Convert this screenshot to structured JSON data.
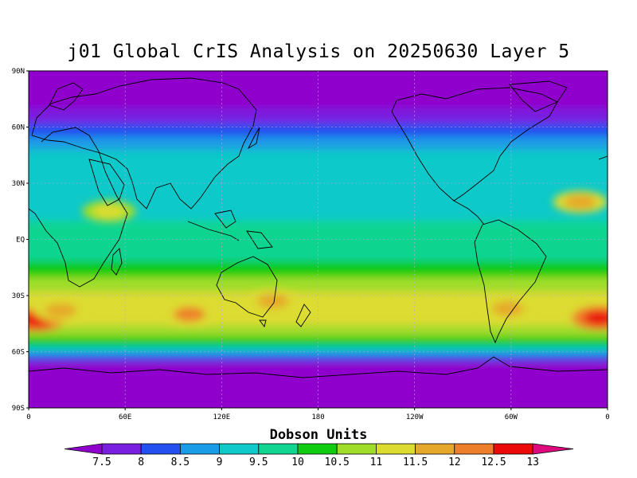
{
  "title": "j01 Global CrIS Analysis on 20250630 Layer 5",
  "colorbar": {
    "title": "Dobson Units",
    "labels": [
      "7.5",
      "8",
      "8.5",
      "9",
      "9.5",
      "10",
      "10.5",
      "11",
      "11.5",
      "12",
      "12.5",
      "13"
    ],
    "colors": [
      "#8f00cc",
      "#7a1fe0",
      "#2450f0",
      "#1a9ce6",
      "#10c9c9",
      "#11d590",
      "#10cc10",
      "#9fdd2a",
      "#dcdc30",
      "#e6a82a",
      "#ee7f2a",
      "#ea0a0a",
      "#dd0a7e"
    ]
  },
  "map": {
    "y_ticks": [
      "90N",
      "60N",
      "30N",
      "EQ",
      "30S",
      "60S",
      "90S"
    ],
    "x_ticks": [
      "0",
      "60E",
      "120E",
      "180",
      "120W",
      "60W",
      "0"
    ],
    "background_color": "#9400d3"
  },
  "chart_data": {
    "type": "heatmap",
    "title": "j01 Global CrIS Analysis on 20250630 Layer 5",
    "units": "Dobson Units",
    "x_ticks": [
      "0",
      "60E",
      "120E",
      "180",
      "120W",
      "60W",
      "0"
    ],
    "y_ticks": [
      "90N",
      "60N",
      "30N",
      "EQ",
      "30S",
      "60S",
      "90S"
    ],
    "lon_range": [
      0,
      360
    ],
    "lat_range": [
      -90,
      90
    ],
    "grid": "dotted",
    "levels": [
      7.5,
      8,
      8.5,
      9,
      9.5,
      10,
      10.5,
      11,
      11.5,
      12,
      12.5,
      13
    ],
    "zonal_bands": [
      {
        "lat": [
          70,
          90
        ],
        "value": 7.3
      },
      {
        "lat": [
          62,
          70
        ],
        "value": 7.8
      },
      {
        "lat": [
          55,
          62
        ],
        "value": 8.3
      },
      {
        "lat": [
          48,
          55
        ],
        "value": 8.8
      },
      {
        "lat": [
          10,
          48
        ],
        "value": 9.3
      },
      {
        "lat": [
          -12,
          10
        ],
        "value": 9.8
      },
      {
        "lat": [
          -20,
          -12
        ],
        "value": 10.3
      },
      {
        "lat": [
          -28,
          -20
        ],
        "value": 10.8
      },
      {
        "lat": [
          -46,
          -28
        ],
        "value": 11.3
      },
      {
        "lat": [
          -52,
          -46
        ],
        "value": 10.8
      },
      {
        "lat": [
          -57,
          -52
        ],
        "value": 10.0
      },
      {
        "lat": [
          -61,
          -57
        ],
        "value": 9.2
      },
      {
        "lat": [
          -65,
          -61
        ],
        "value": 8.3
      },
      {
        "lat": [
          -90,
          -65
        ],
        "value": 7.3
      }
    ],
    "features": [
      {
        "lon": 5,
        "lat": -43,
        "value": 12.8
      },
      {
        "lon": 355,
        "lat": -42,
        "value": 12.7
      },
      {
        "lon": 100,
        "lat": -40,
        "value": 12.0
      },
      {
        "lon": 20,
        "lat": -38,
        "value": 11.8
      },
      {
        "lon": 152,
        "lat": -33,
        "value": 11.9
      },
      {
        "lon": 298,
        "lat": -37,
        "value": 11.9
      },
      {
        "lon": 343,
        "lat": 20,
        "value": 11.6
      },
      {
        "lon": 50,
        "lat": 15,
        "value": 11.2
      }
    ]
  }
}
